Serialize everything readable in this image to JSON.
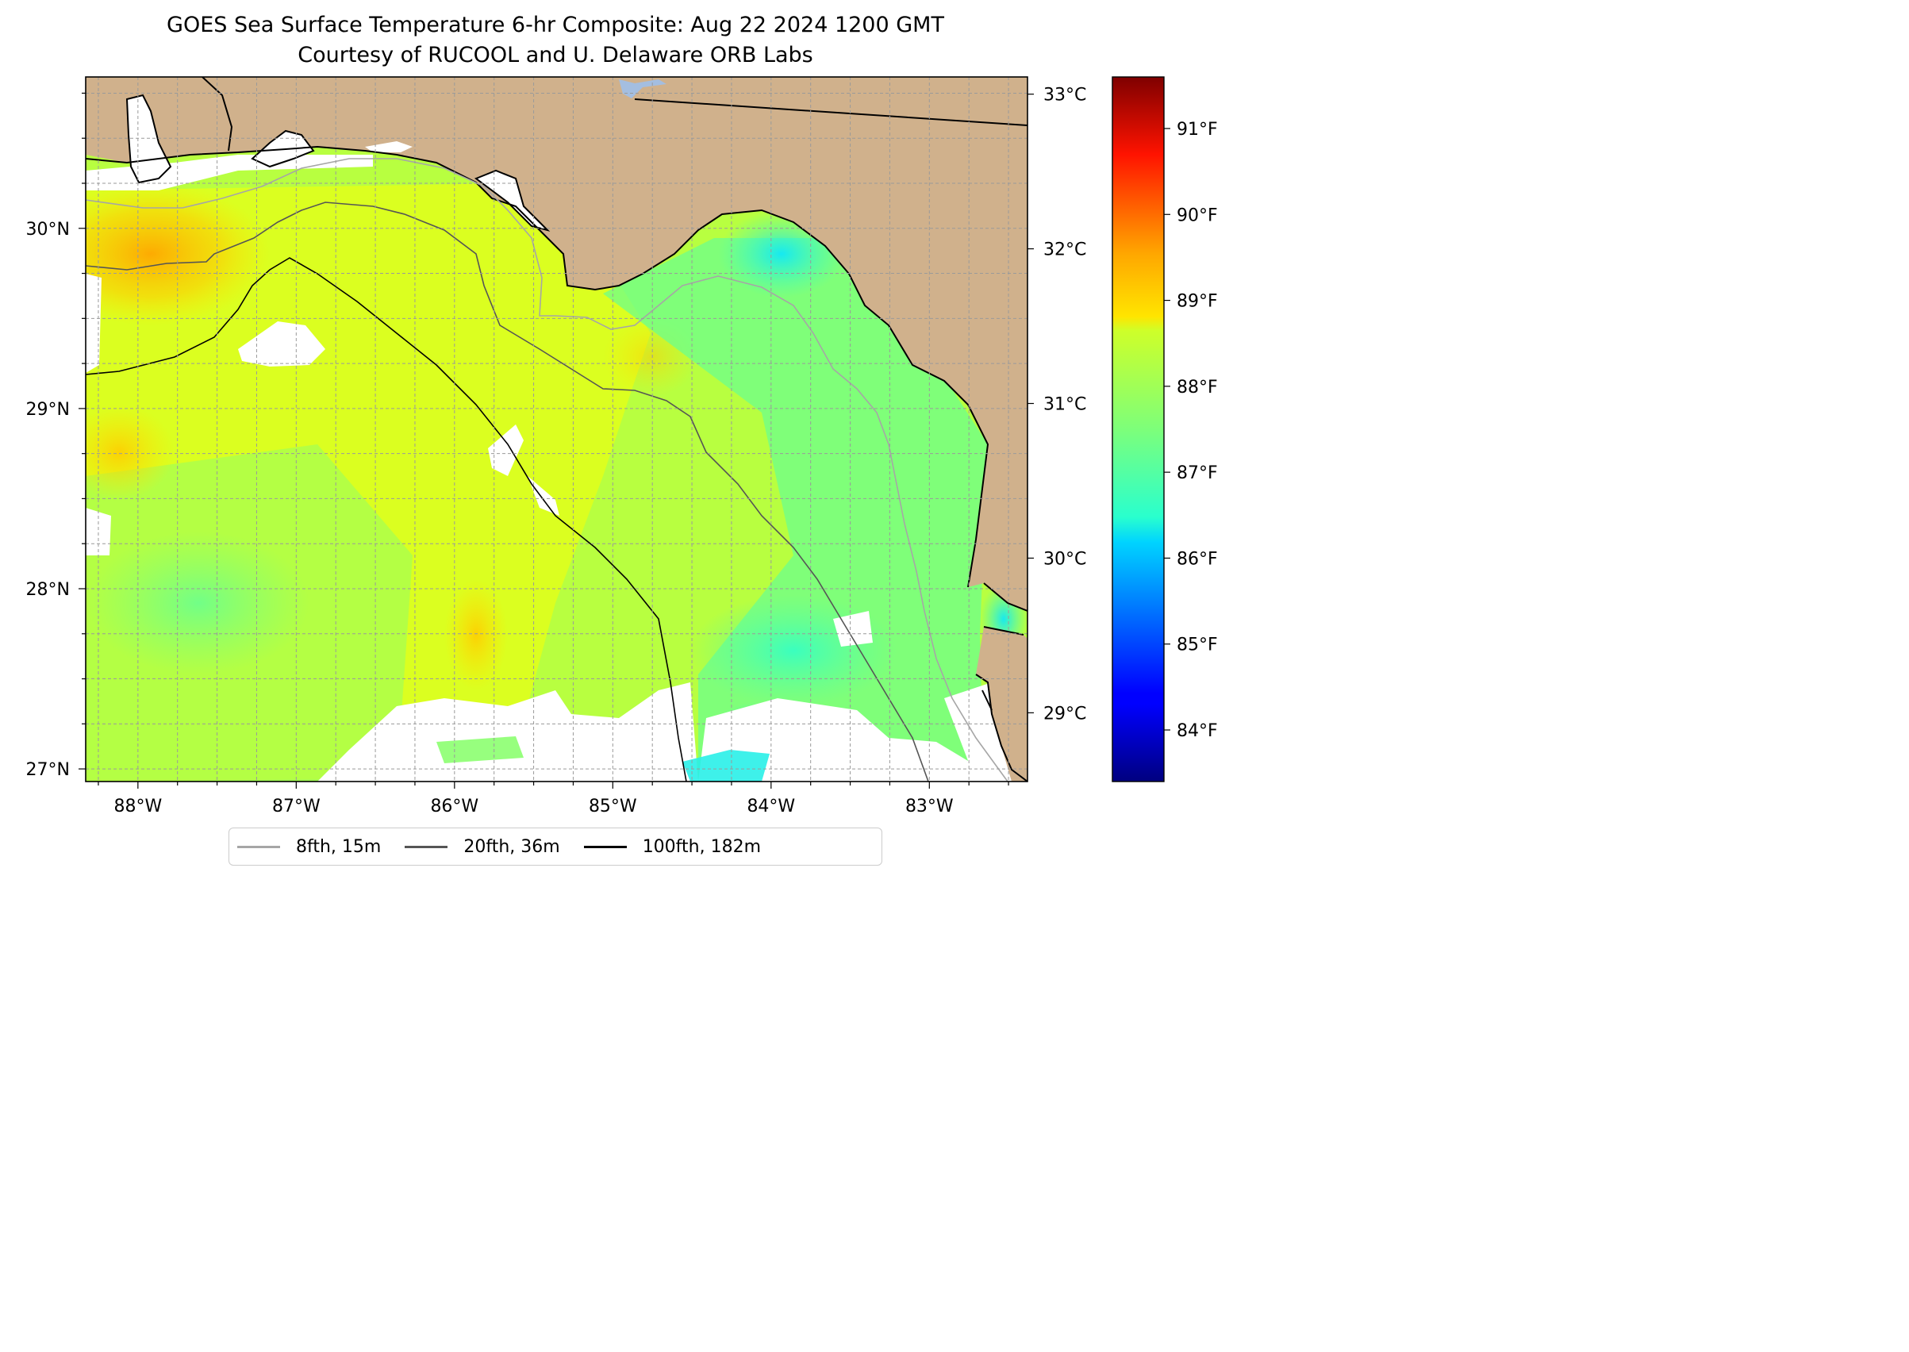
{
  "title": {
    "line1": "GOES Sea Surface Temperature 6-hr Composite: Aug 22 2024 1200 GMT",
    "line2": "Courtesy of RUCOOL and U. Delaware ORB Labs"
  },
  "map_extent": {
    "lon": [
      -88.33,
      -82.38
    ],
    "lat": [
      26.93,
      30.84
    ]
  },
  "lon_ticks": [
    {
      "value": -88,
      "label": "88°W"
    },
    {
      "value": -87,
      "label": "87°W"
    },
    {
      "value": -86,
      "label": "86°W"
    },
    {
      "value": -85,
      "label": "85°W"
    },
    {
      "value": -84,
      "label": "84°W"
    },
    {
      "value": -83,
      "label": "83°W"
    }
  ],
  "lat_ticks": [
    {
      "value": 27,
      "label": "27°N"
    },
    {
      "value": 28,
      "label": "28°N"
    },
    {
      "value": 29,
      "label": "29°N"
    },
    {
      "value": 30,
      "label": "30°N"
    }
  ],
  "colorbar": {
    "colormap": "jet",
    "range_f": [
      83.4,
      91.6
    ],
    "celsius_ticks": [
      {
        "value": 29,
        "label": "29°C"
      },
      {
        "value": 30,
        "label": "30°C"
      },
      {
        "value": 31,
        "label": "31°C"
      },
      {
        "value": 32,
        "label": "32°C"
      },
      {
        "value": 33,
        "label": "33°C"
      }
    ],
    "fahrenheit_ticks": [
      {
        "value": 84,
        "label": "84°F"
      },
      {
        "value": 85,
        "label": "85°F"
      },
      {
        "value": 86,
        "label": "86°F"
      },
      {
        "value": 87,
        "label": "87°F"
      },
      {
        "value": 88,
        "label": "88°F"
      },
      {
        "value": 89,
        "label": "89°F"
      },
      {
        "value": 90,
        "label": "90°F"
      },
      {
        "value": 91,
        "label": "91°F"
      }
    ]
  },
  "legend": [
    {
      "label": "8fth, 15m",
      "color": "#a6a6a6"
    },
    {
      "label": "20fth, 36m",
      "color": "#555555"
    },
    {
      "label": "100fth, 182m",
      "color": "#000000"
    }
  ],
  "colors": {
    "land": "#d0b18c",
    "lake": "#a4bee0",
    "gridline": "#9a9a9a"
  }
}
